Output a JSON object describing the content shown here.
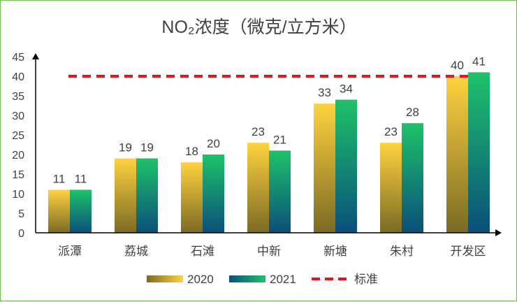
{
  "chart_data": {
    "type": "bar",
    "title": "NO₂浓度（微克/立方米）",
    "categories": [
      "派潭",
      "荔城",
      "石滩",
      "中新",
      "新塘",
      "朱村",
      "开发区"
    ],
    "series": [
      {
        "name": "2020",
        "values": [
          11,
          19,
          18,
          23,
          33,
          23,
          40
        ],
        "colors": [
          "#ffd23f",
          "#7a6a24"
        ]
      },
      {
        "name": "2021",
        "values": [
          11,
          19,
          20,
          21,
          34,
          28,
          41
        ],
        "colors": [
          "#1ec26a",
          "#0a4f7a"
        ]
      }
    ],
    "reference_line": {
      "name": "标准",
      "value": 40,
      "color": "#e8141b",
      "style": "dashed"
    },
    "ylim": [
      0,
      45
    ],
    "yticks": [
      0,
      5,
      10,
      15,
      20,
      25,
      30,
      35,
      40,
      45
    ],
    "xlabel": "",
    "ylabel": "",
    "grid": false,
    "legend_position": "bottom"
  }
}
